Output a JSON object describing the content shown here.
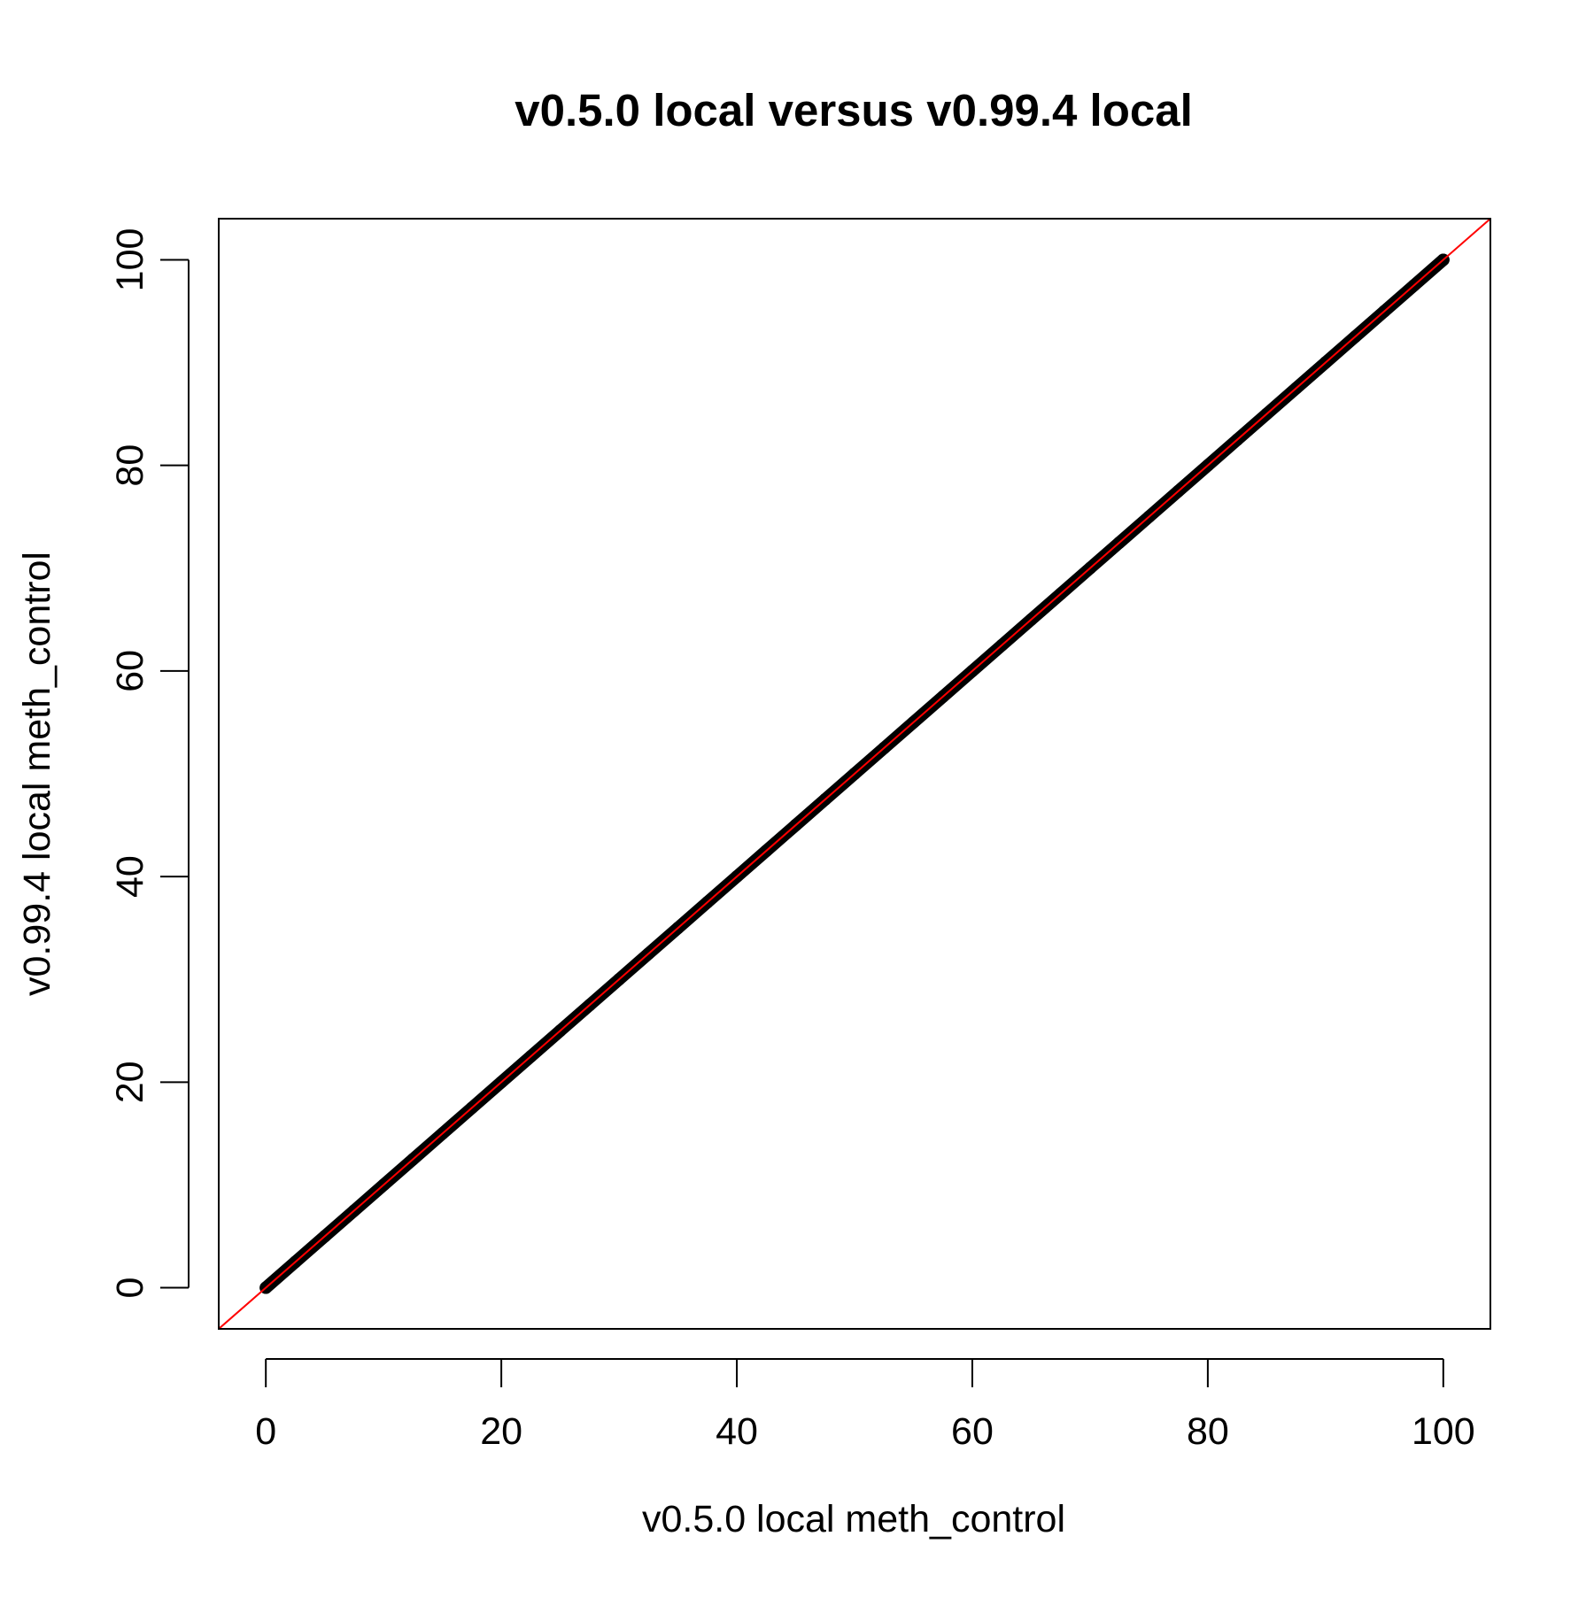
{
  "chart_data": {
    "type": "scatter",
    "title": "v0.5.0 local versus v0.99.4 local",
    "xlabel": "v0.5.0 local meth_control",
    "ylabel": "v0.99.4 local meth_control",
    "xlim": [
      -4,
      104
    ],
    "ylim": [
      -4,
      104
    ],
    "x_ticks": [
      0,
      20,
      40,
      60,
      80,
      100
    ],
    "y_ticks": [
      0,
      20,
      40,
      60,
      80,
      100
    ],
    "x_tick_labels": [
      "0",
      "20",
      "40",
      "60",
      "80",
      "100"
    ],
    "y_tick_labels": [
      "0",
      "20",
      "40",
      "60",
      "80",
      "100"
    ],
    "grid": false,
    "point_color": "#000000",
    "reference_line": {
      "slope": 1,
      "intercept": 0,
      "color": "#ff0000"
    },
    "series": [
      {
        "x": [
          0,
          2.5,
          5,
          7.5,
          10,
          12.5,
          15,
          17.5,
          20,
          22.5,
          25,
          27.5,
          30,
          32.5,
          35,
          37.5,
          40,
          42.5,
          45,
          47.5,
          50,
          52.5,
          55,
          57.5,
          60,
          62.5,
          65,
          67.5,
          70,
          72.5,
          75,
          77.5,
          80,
          82.5,
          85,
          87.5,
          90,
          92.5,
          95,
          97.5,
          100
        ],
        "y": [
          0,
          2.5,
          5,
          7.5,
          10,
          12.5,
          15,
          17.5,
          20,
          22.5,
          25,
          27.5,
          30,
          32.5,
          35,
          37.5,
          40,
          42.5,
          45,
          47.5,
          50,
          52.5,
          55,
          57.5,
          60,
          62.5,
          65,
          67.5,
          70,
          72.5,
          75,
          77.5,
          80,
          82.5,
          85,
          87.5,
          90,
          92.5,
          95,
          97.5,
          100
        ]
      }
    ]
  }
}
